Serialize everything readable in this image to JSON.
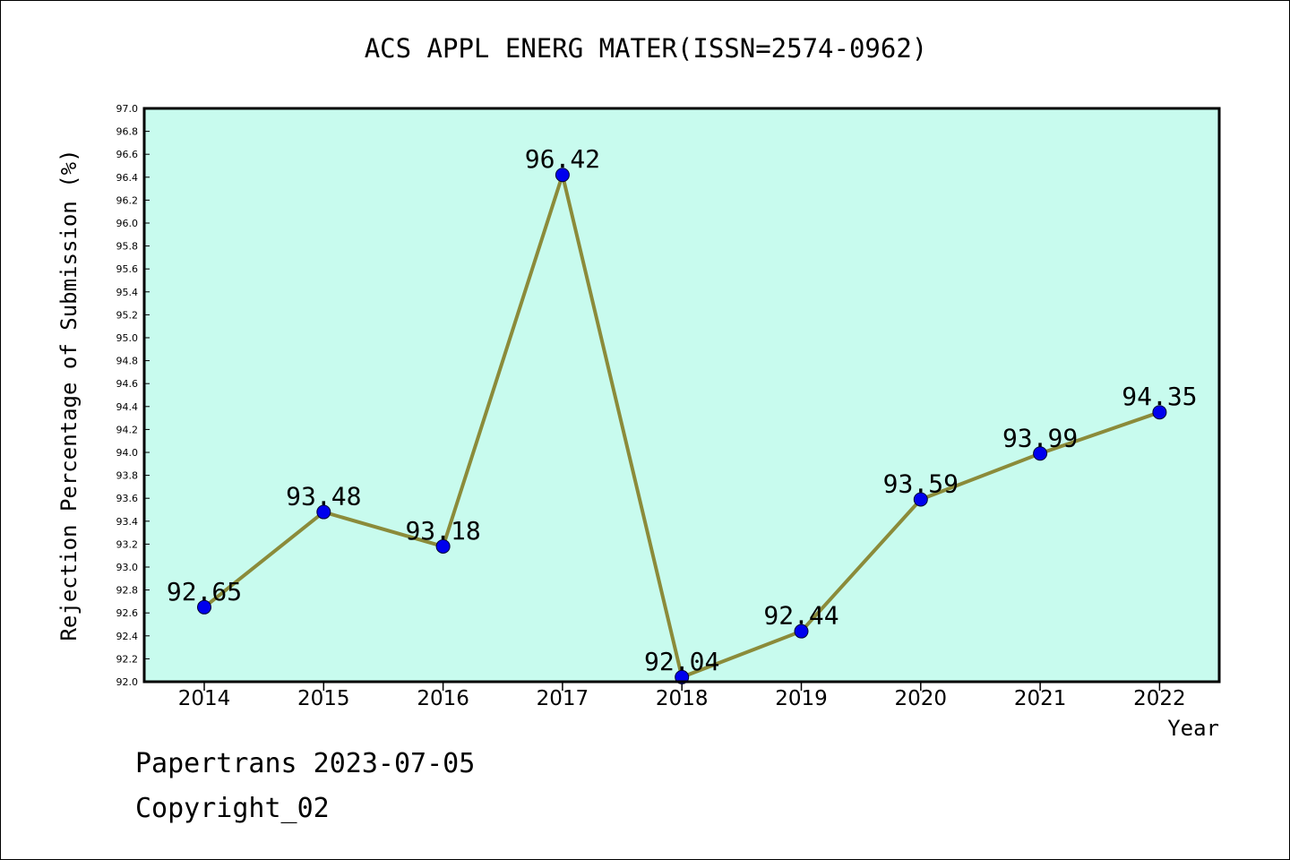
{
  "colors": {
    "plot_background": "#c8fbee",
    "line": "#8b8b3a",
    "marker": "#0000ee",
    "frame": "#000000"
  },
  "footer": {
    "line1": "Papertrans 2023-07-05",
    "line2": "Copyright_02"
  },
  "chart_data": {
    "type": "line",
    "title": "ACS APPL ENERG MATER(ISSN=2574-0962)",
    "xlabel": "Year",
    "ylabel": "Rejection Percentage of Submission (%)",
    "categories": [
      "2014",
      "2015",
      "2016",
      "2017",
      "2018",
      "2019",
      "2020",
      "2021",
      "2022"
    ],
    "series": [
      {
        "values": [
          92.65,
          93.48,
          93.18,
          96.42,
          92.04,
          92.44,
          93.59,
          93.99,
          94.35
        ],
        "labels": [
          "92.65",
          "93.48",
          "93.18",
          "96.42",
          "92.04",
          "92.44",
          "93.59",
          "93.99",
          "94.35"
        ]
      }
    ],
    "ylim": [
      92.0,
      97.0
    ],
    "ytick_step": 0.2,
    "grid": false,
    "legend": "none"
  }
}
